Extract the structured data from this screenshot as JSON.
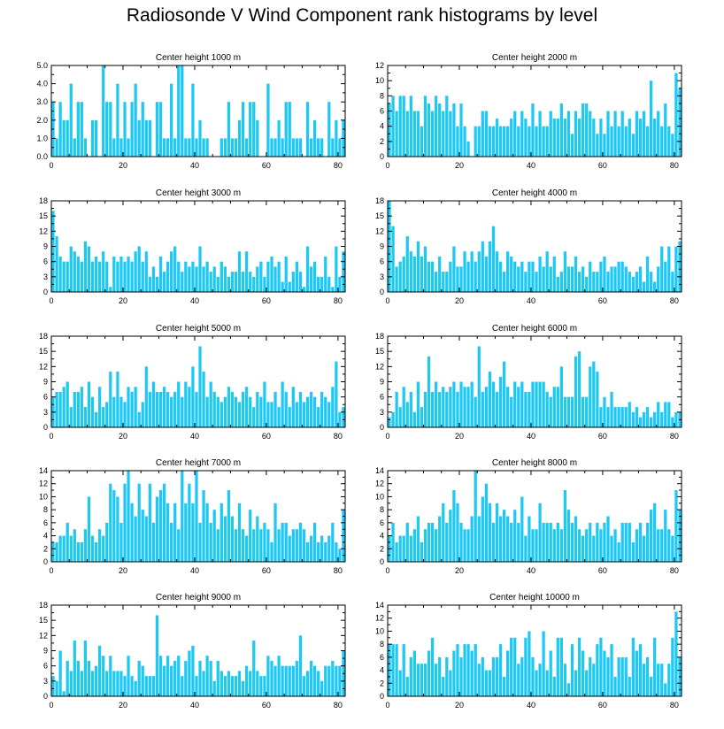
{
  "title": "Radiosonde V Wind Component rank histograms by level",
  "colors": {
    "bar": "#1ec8f5",
    "bar_edge": "#ffffff",
    "axis": "#000000"
  },
  "chart_data": [
    {
      "type": "bar",
      "title": "Center height 1000 m",
      "xlim": [
        0,
        82
      ],
      "ylim": [
        0,
        5
      ],
      "xticks": [
        0,
        20,
        40,
        60,
        80
      ],
      "yticks": [
        0,
        1,
        2,
        3,
        4,
        5
      ],
      "ytick_labels": [
        "0.0",
        "1.0",
        "2.0",
        "3.0",
        "4.0",
        "5.0"
      ],
      "values": [
        3,
        1,
        3,
        2,
        2,
        4,
        1,
        3,
        3,
        1,
        0,
        2,
        2,
        0,
        5,
        3,
        3,
        1,
        4,
        1,
        3,
        1,
        3,
        4,
        2,
        3,
        2,
        2,
        0,
        3,
        3,
        1,
        1,
        4,
        1,
        5,
        5,
        1,
        1,
        4,
        1,
        2,
        1,
        1,
        0,
        0,
        0,
        1,
        1,
        3,
        1,
        1,
        2,
        3,
        1,
        3,
        3,
        2,
        0,
        0,
        4,
        1,
        1,
        2,
        1,
        3,
        3,
        1,
        1,
        1,
        0,
        3,
        1,
        2,
        1,
        1,
        0,
        3,
        1,
        2,
        1,
        2
      ]
    },
    {
      "type": "bar",
      "title": "Center height 2000 m",
      "xlim": [
        0,
        82
      ],
      "ylim": [
        0,
        12
      ],
      "xticks": [
        0,
        20,
        40,
        60,
        80
      ],
      "yticks": [
        0,
        2,
        4,
        6,
        8,
        10,
        12
      ],
      "values": [
        7,
        8,
        6,
        8,
        8,
        6,
        8,
        6,
        6,
        4,
        8,
        7,
        6,
        8,
        7,
        6,
        8,
        6,
        7,
        4,
        7,
        4,
        2,
        0,
        4,
        4,
        6,
        6,
        4,
        4,
        5,
        4,
        4,
        4,
        5,
        6,
        4,
        6,
        5,
        4,
        7,
        4,
        6,
        4,
        4,
        6,
        5,
        5,
        7,
        5,
        6,
        3,
        6,
        5,
        7,
        7,
        6,
        5,
        3,
        5,
        3,
        6,
        4,
        6,
        4,
        6,
        4,
        5,
        3,
        6,
        5,
        6,
        4,
        10,
        5,
        6,
        4,
        7,
        4,
        3,
        11,
        9
      ]
    },
    {
      "type": "bar",
      "title": "Center height 3000 m",
      "xlim": [
        0,
        82
      ],
      "ylim": [
        0,
        18
      ],
      "xticks": [
        0,
        20,
        40,
        60,
        80
      ],
      "yticks": [
        0,
        3,
        6,
        9,
        12,
        15,
        18
      ],
      "values": [
        16,
        11,
        7,
        6,
        6,
        9,
        8,
        7,
        6,
        10,
        9,
        6,
        7,
        6,
        8,
        6,
        1,
        7,
        6,
        7,
        6,
        7,
        6,
        8,
        9,
        6,
        8,
        3,
        5,
        3,
        7,
        4,
        6,
        8,
        9,
        6,
        4,
        6,
        5,
        6,
        5,
        9,
        5,
        6,
        4,
        5,
        3,
        6,
        5,
        3,
        4,
        4,
        8,
        4,
        8,
        4,
        3,
        5,
        6,
        3,
        6,
        7,
        5,
        6,
        2,
        7,
        2,
        4,
        6,
        4,
        1,
        9,
        5,
        6,
        3,
        3,
        7,
        3,
        1,
        9,
        3,
        8
      ]
    },
    {
      "type": "bar",
      "title": "Center height 4000 m",
      "xlim": [
        0,
        82
      ],
      "ylim": [
        0,
        18
      ],
      "xticks": [
        0,
        20,
        40,
        60,
        80
      ],
      "yticks": [
        0,
        3,
        6,
        9,
        12,
        15,
        18
      ],
      "values": [
        18,
        13,
        5,
        6,
        7,
        11,
        8,
        7,
        10,
        7,
        9,
        6,
        6,
        4,
        7,
        4,
        4,
        6,
        9,
        5,
        5,
        8,
        6,
        8,
        6,
        8,
        10,
        7,
        10,
        13,
        8,
        6,
        4,
        8,
        7,
        6,
        5,
        6,
        4,
        6,
        6,
        4,
        7,
        5,
        8,
        5,
        7,
        3,
        4,
        8,
        5,
        5,
        7,
        4,
        5,
        3,
        6,
        4,
        4,
        6,
        7,
        4,
        5,
        5,
        6,
        6,
        5,
        4,
        3,
        4,
        5,
        2,
        7,
        4,
        2,
        5,
        9,
        6,
        9,
        4,
        9,
        10
      ]
    },
    {
      "type": "bar",
      "title": "Center height 5000 m",
      "xlim": [
        0,
        82
      ],
      "ylim": [
        0,
        18
      ],
      "xticks": [
        0,
        20,
        40,
        60,
        80
      ],
      "yticks": [
        0,
        3,
        6,
        9,
        12,
        15,
        18
      ],
      "values": [
        6,
        7,
        7,
        8,
        9,
        4,
        7,
        7,
        8,
        4,
        9,
        6,
        3,
        8,
        4,
        5,
        11,
        6,
        11,
        6,
        5,
        8,
        7,
        8,
        3,
        5,
        12,
        7,
        9,
        7,
        7,
        8,
        7,
        6,
        7,
        9,
        6,
        9,
        8,
        12,
        7,
        16,
        11,
        6,
        9,
        7,
        6,
        5,
        6,
        8,
        7,
        6,
        5,
        7,
        8,
        6,
        4,
        7,
        6,
        9,
        5,
        5,
        7,
        4,
        9,
        7,
        4,
        8,
        5,
        7,
        5,
        6,
        7,
        6,
        4,
        7,
        6,
        5,
        8,
        13,
        3,
        4
      ]
    },
    {
      "type": "bar",
      "title": "Center height 6000 m",
      "xlim": [
        0,
        82
      ],
      "ylim": [
        0,
        18
      ],
      "xticks": [
        0,
        20,
        40,
        60,
        80
      ],
      "yticks": [
        0,
        3,
        6,
        9,
        12,
        15,
        18
      ],
      "values": [
        2,
        3,
        7,
        4,
        8,
        5,
        7,
        3,
        9,
        4,
        7,
        14,
        7,
        9,
        7,
        8,
        7,
        8,
        9,
        7,
        9,
        8,
        8,
        9,
        6,
        16,
        7,
        8,
        11,
        9,
        7,
        10,
        13,
        8,
        6,
        9,
        8,
        9,
        7,
        7,
        9,
        9,
        9,
        9,
        7,
        6,
        8,
        8,
        12,
        6,
        6,
        6,
        14,
        15,
        6,
        6,
        12,
        13,
        11,
        4,
        6,
        4,
        7,
        4,
        4,
        4,
        4,
        5,
        3,
        4,
        2,
        3,
        4,
        2,
        3,
        5,
        3,
        5,
        5,
        2,
        3,
        3
      ]
    },
    {
      "type": "bar",
      "title": "Center height 7000 m",
      "xlim": [
        0,
        82
      ],
      "ylim": [
        0,
        14
      ],
      "xticks": [
        0,
        20,
        40,
        60,
        80
      ],
      "yticks": [
        0,
        2,
        4,
        6,
        8,
        10,
        12,
        14
      ],
      "values": [
        3,
        3,
        4,
        4,
        6,
        4,
        5,
        3,
        3,
        5,
        10,
        4,
        3,
        5,
        4,
        6,
        12,
        11,
        10,
        6,
        12,
        14,
        9,
        7,
        12,
        8,
        7,
        12,
        6,
        10,
        11,
        12,
        9,
        6,
        9,
        5,
        14,
        9,
        12,
        9,
        14,
        6,
        11,
        9,
        6,
        8,
        5,
        9,
        7,
        11,
        7,
        5,
        9,
        5,
        4,
        8,
        5,
        7,
        5,
        6,
        5,
        3,
        9,
        5,
        6,
        6,
        4,
        5,
        5,
        6,
        5,
        3,
        4,
        6,
        3,
        4,
        3,
        4,
        6,
        3,
        2,
        8
      ]
    },
    {
      "type": "bar",
      "title": "Center height 8000 m",
      "xlim": [
        0,
        82
      ],
      "ylim": [
        0,
        14
      ],
      "xticks": [
        0,
        20,
        40,
        60,
        80
      ],
      "yticks": [
        0,
        2,
        4,
        6,
        8,
        10,
        12,
        14
      ],
      "values": [
        4,
        6,
        3,
        4,
        4,
        6,
        4,
        5,
        7,
        3,
        5,
        6,
        6,
        5,
        7,
        9,
        6,
        8,
        11,
        9,
        6,
        5,
        5,
        7,
        14,
        7,
        10,
        12,
        9,
        6,
        9,
        7,
        8,
        7,
        6,
        8,
        6,
        10,
        4,
        7,
        5,
        5,
        9,
        6,
        6,
        6,
        5,
        6,
        5,
        11,
        8,
        6,
        7,
        5,
        4,
        5,
        6,
        4,
        6,
        5,
        6,
        7,
        4,
        5,
        3,
        6,
        6,
        6,
        3,
        5,
        6,
        4,
        6,
        8,
        9,
        5,
        5,
        8,
        5,
        4,
        11,
        8
      ]
    },
    {
      "type": "bar",
      "title": "Center height 9000 m",
      "xlim": [
        0,
        82
      ],
      "ylim": [
        0,
        18
      ],
      "xticks": [
        0,
        20,
        40,
        60,
        80
      ],
      "yticks": [
        0,
        3,
        6,
        9,
        12,
        15,
        18
      ],
      "values": [
        4,
        3,
        9,
        1,
        7,
        5,
        11,
        7,
        5,
        11,
        7,
        5,
        6,
        10,
        8,
        5,
        8,
        5,
        5,
        5,
        4,
        8,
        4,
        3,
        7,
        6,
        4,
        4,
        4,
        16,
        8,
        6,
        8,
        6,
        7,
        8,
        4,
        7,
        9,
        10,
        4,
        7,
        5,
        8,
        7,
        3,
        7,
        5,
        4,
        5,
        4,
        4,
        5,
        3,
        6,
        5,
        11,
        5,
        4,
        4,
        8,
        7,
        6,
        8,
        6,
        6,
        6,
        6,
        7,
        12,
        4,
        5,
        7,
        6,
        5,
        3,
        6,
        6,
        7,
        6,
        6,
        9
      ]
    },
    {
      "type": "bar",
      "title": "Center height 10000 m",
      "xlim": [
        0,
        82
      ],
      "ylim": [
        0,
        14
      ],
      "xticks": [
        0,
        20,
        40,
        60,
        80
      ],
      "yticks": [
        0,
        2,
        4,
        6,
        8,
        10,
        12,
        14
      ],
      "values": [
        8,
        8,
        8,
        4,
        8,
        3,
        6,
        7,
        5,
        5,
        5,
        7,
        9,
        5,
        6,
        3,
        6,
        4,
        7,
        8,
        6,
        8,
        8,
        7,
        8,
        5,
        6,
        4,
        4,
        6,
        6,
        8,
        3,
        7,
        9,
        9,
        5,
        6,
        9,
        10,
        6,
        4,
        5,
        10,
        4,
        7,
        3,
        9,
        9,
        5,
        2,
        8,
        4,
        9,
        7,
        4,
        6,
        5,
        8,
        9,
        7,
        6,
        8,
        3,
        6,
        6,
        6,
        3,
        9,
        7,
        8,
        5,
        6,
        3,
        9,
        5,
        5,
        2,
        5,
        9,
        13,
        6
      ]
    }
  ]
}
